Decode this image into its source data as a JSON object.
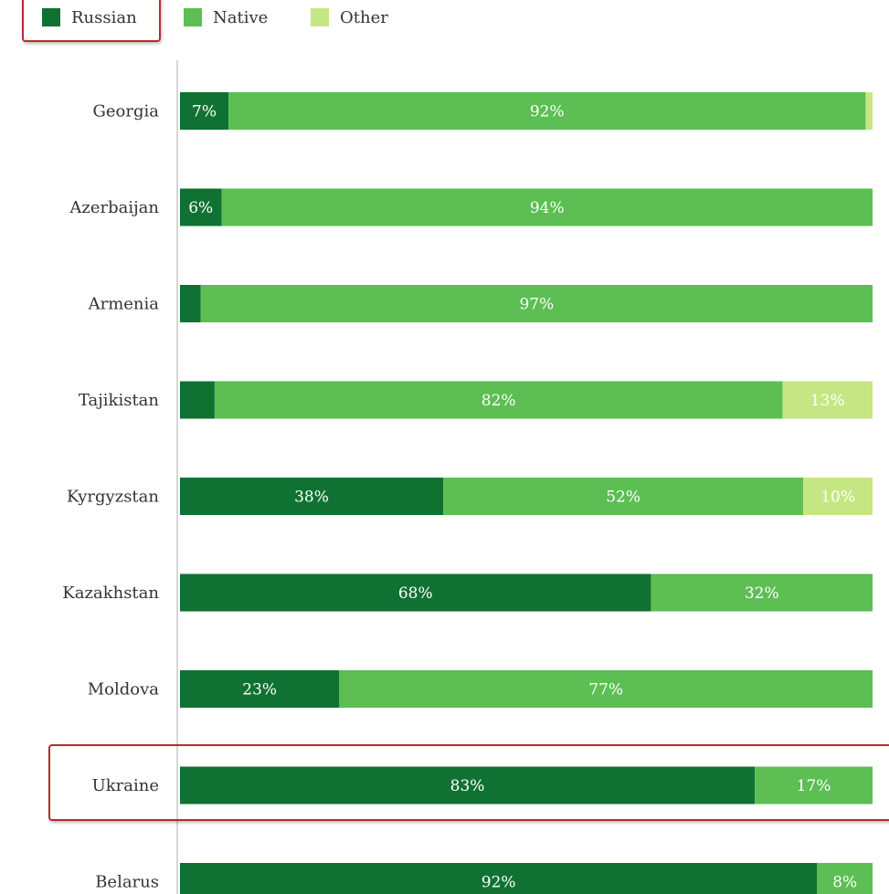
{
  "chart_data": {
    "type": "bar",
    "orientation": "horizontal",
    "stacked": true,
    "categories": [
      "Georgia",
      "Azerbaijan",
      "Armenia",
      "Tajikistan",
      "Kyrgyzstan",
      "Kazakhstan",
      "Moldova",
      "Ukraine",
      "Belarus"
    ],
    "series": [
      {
        "name": "Russian",
        "color": "#0f7233",
        "values": [
          7,
          6,
          3,
          5,
          38,
          68,
          23,
          83,
          92
        ],
        "labels": [
          "7%",
          "6%",
          "",
          "",
          "38%",
          "68%",
          "23%",
          "83%",
          "92%"
        ]
      },
      {
        "name": "Native",
        "color": "#5cbe53",
        "values": [
          92,
          94,
          97,
          82,
          52,
          32,
          77,
          17,
          8
        ],
        "labels": [
          "92%",
          "94%",
          "97%",
          "82%",
          "52%",
          "32%",
          "77%",
          "17%",
          "8%"
        ]
      },
      {
        "name": "Other",
        "color": "#c6e683",
        "values": [
          1,
          0,
          0,
          13,
          10,
          0,
          0,
          0,
          0
        ],
        "labels": [
          "",
          "",
          "",
          "13%",
          "10%",
          "",
          "",
          "",
          ""
        ]
      }
    ],
    "xlim": [
      0,
      100
    ],
    "legend_position": "top-left",
    "highlighted": [
      "Russian",
      "Ukraine"
    ]
  }
}
